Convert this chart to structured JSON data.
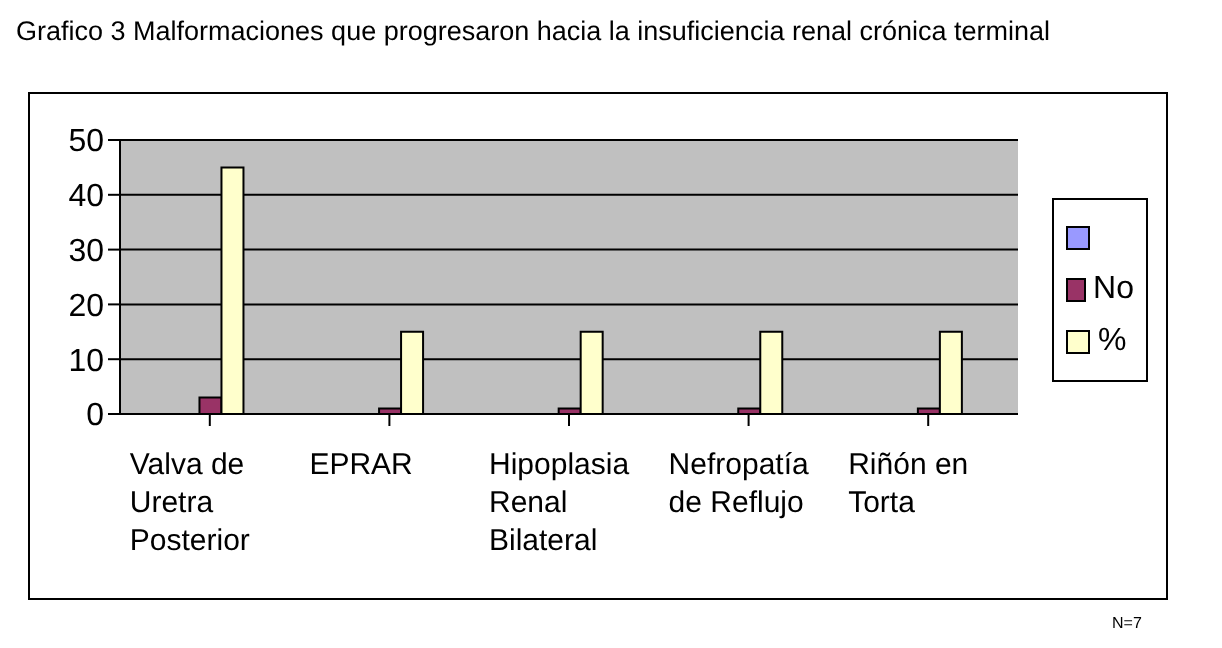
{
  "chart_data": {
    "type": "bar",
    "title": "Grafico 3 Malformaciones que progresaron hacia la insuficiencia renal crónica terminal",
    "categories": [
      "Valva de Uretra Posterior",
      "EPRAR",
      "Hipoplasia Renal Bilateral",
      "Nefropatía de Reflujo",
      "Riñón en Torta"
    ],
    "series": [
      {
        "color": "#9999ff",
        "values": [
          0,
          0,
          0,
          0,
          0
        ]
      },
      {
        "name": "No",
        "color": "#993366",
        "values": [
          3,
          1,
          1,
          1,
          1
        ]
      },
      {
        "name": "%",
        "color": "#ffffcc",
        "values": [
          45,
          15,
          15,
          15,
          15
        ]
      }
    ],
    "ylim": [
      0,
      50
    ],
    "yticks": [
      0,
      10,
      20,
      30,
      40,
      50
    ],
    "grid": "y",
    "legend": "right",
    "annotations": [
      "N=7"
    ]
  }
}
